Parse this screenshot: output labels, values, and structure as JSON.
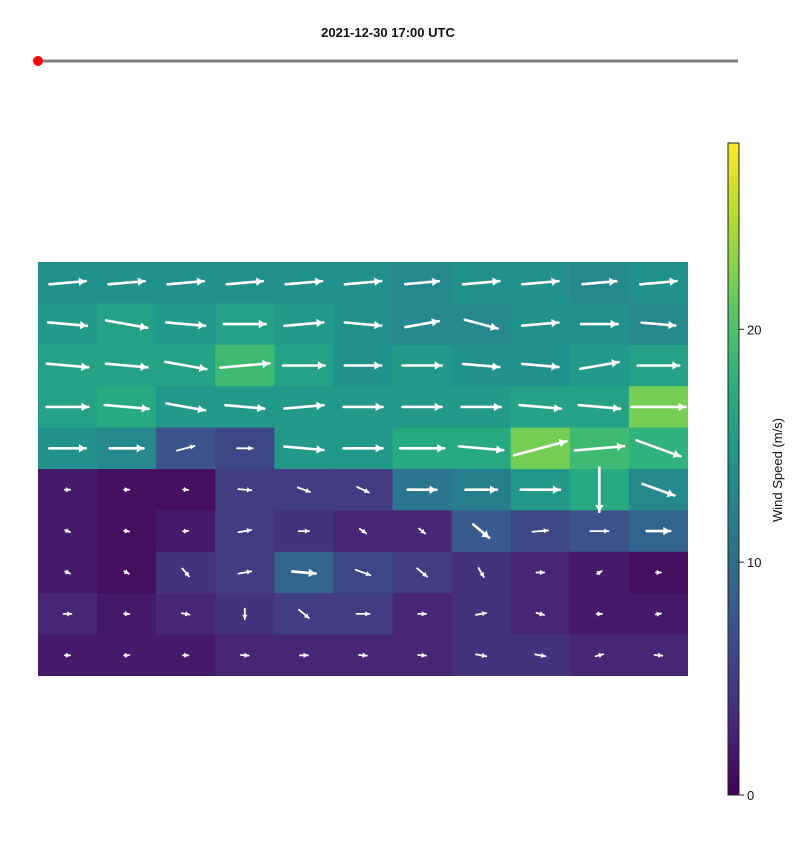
{
  "header": {
    "timestamp": "2021-12-30 17:00 UTC"
  },
  "timeline": {
    "track_color": "#808080",
    "handle_color": "#ff0000",
    "progress": 0
  },
  "colorbar": {
    "label": "Wind Speed (m/s)",
    "ticks": [
      0,
      10,
      20
    ],
    "range": [
      0,
      28
    ],
    "colormap": "viridis"
  },
  "chart_data": {
    "type": "heatmap",
    "title": "2021-12-30 17:00 UTC",
    "variable": "Wind Speed (m/s)",
    "vmin": 0,
    "vmax": 28,
    "rows_top_to_bottom": 10,
    "cols_left_to_right": 11,
    "speed": [
      [
        14,
        14,
        14,
        14,
        14,
        14,
        13,
        14,
        14,
        13,
        14
      ],
      [
        15,
        16,
        15,
        16,
        15,
        14,
        13,
        13,
        14,
        14,
        13
      ],
      [
        16,
        16,
        16,
        19,
        16,
        14,
        15,
        14,
        14,
        15,
        16
      ],
      [
        16,
        17,
        15,
        15,
        15,
        15,
        15,
        15,
        16,
        16,
        22
      ],
      [
        14,
        13,
        7,
        6,
        15,
        15,
        17,
        17,
        22,
        19,
        18
      ],
      [
        2,
        1,
        1,
        5,
        5,
        5,
        11,
        12,
        15,
        17,
        13
      ],
      [
        2,
        1,
        2,
        5,
        4,
        3,
        3,
        8,
        6,
        7,
        9
      ],
      [
        2,
        1,
        4,
        5,
        9,
        6,
        5,
        4,
        3,
        2,
        1
      ],
      [
        3,
        2,
        3,
        4,
        5,
        5,
        3,
        4,
        3,
        2,
        2
      ],
      [
        2,
        2,
        2,
        3,
        3,
        3,
        3,
        4,
        4,
        3,
        3
      ]
    ],
    "direction_deg": [
      [
        -5,
        -5,
        -5,
        -5,
        -5,
        -5,
        -5,
        -5,
        -5,
        -5,
        -5
      ],
      [
        5,
        10,
        5,
        0,
        -5,
        5,
        -10,
        15,
        -5,
        0,
        5
      ],
      [
        5,
        5,
        10,
        -5,
        0,
        0,
        0,
        5,
        5,
        -10,
        0
      ],
      [
        0,
        5,
        10,
        5,
        -5,
        0,
        0,
        0,
        5,
        5,
        0
      ],
      [
        0,
        0,
        -15,
        0,
        5,
        0,
        0,
        5,
        -15,
        -5,
        20
      ],
      [
        0,
        0,
        5,
        5,
        20,
        25,
        0,
        0,
        0,
        90,
        20
      ],
      [
        20,
        10,
        -5,
        -10,
        0,
        35,
        40,
        40,
        -5,
        0,
        0
      ],
      [
        25,
        30,
        50,
        -10,
        5,
        20,
        40,
        60,
        0,
        -30,
        0
      ],
      [
        0,
        5,
        10,
        90,
        40,
        0,
        0,
        -10,
        15,
        0,
        -10
      ],
      [
        0,
        -5,
        0,
        5,
        0,
        5,
        5,
        10,
        10,
        -15,
        5
      ]
    ]
  }
}
